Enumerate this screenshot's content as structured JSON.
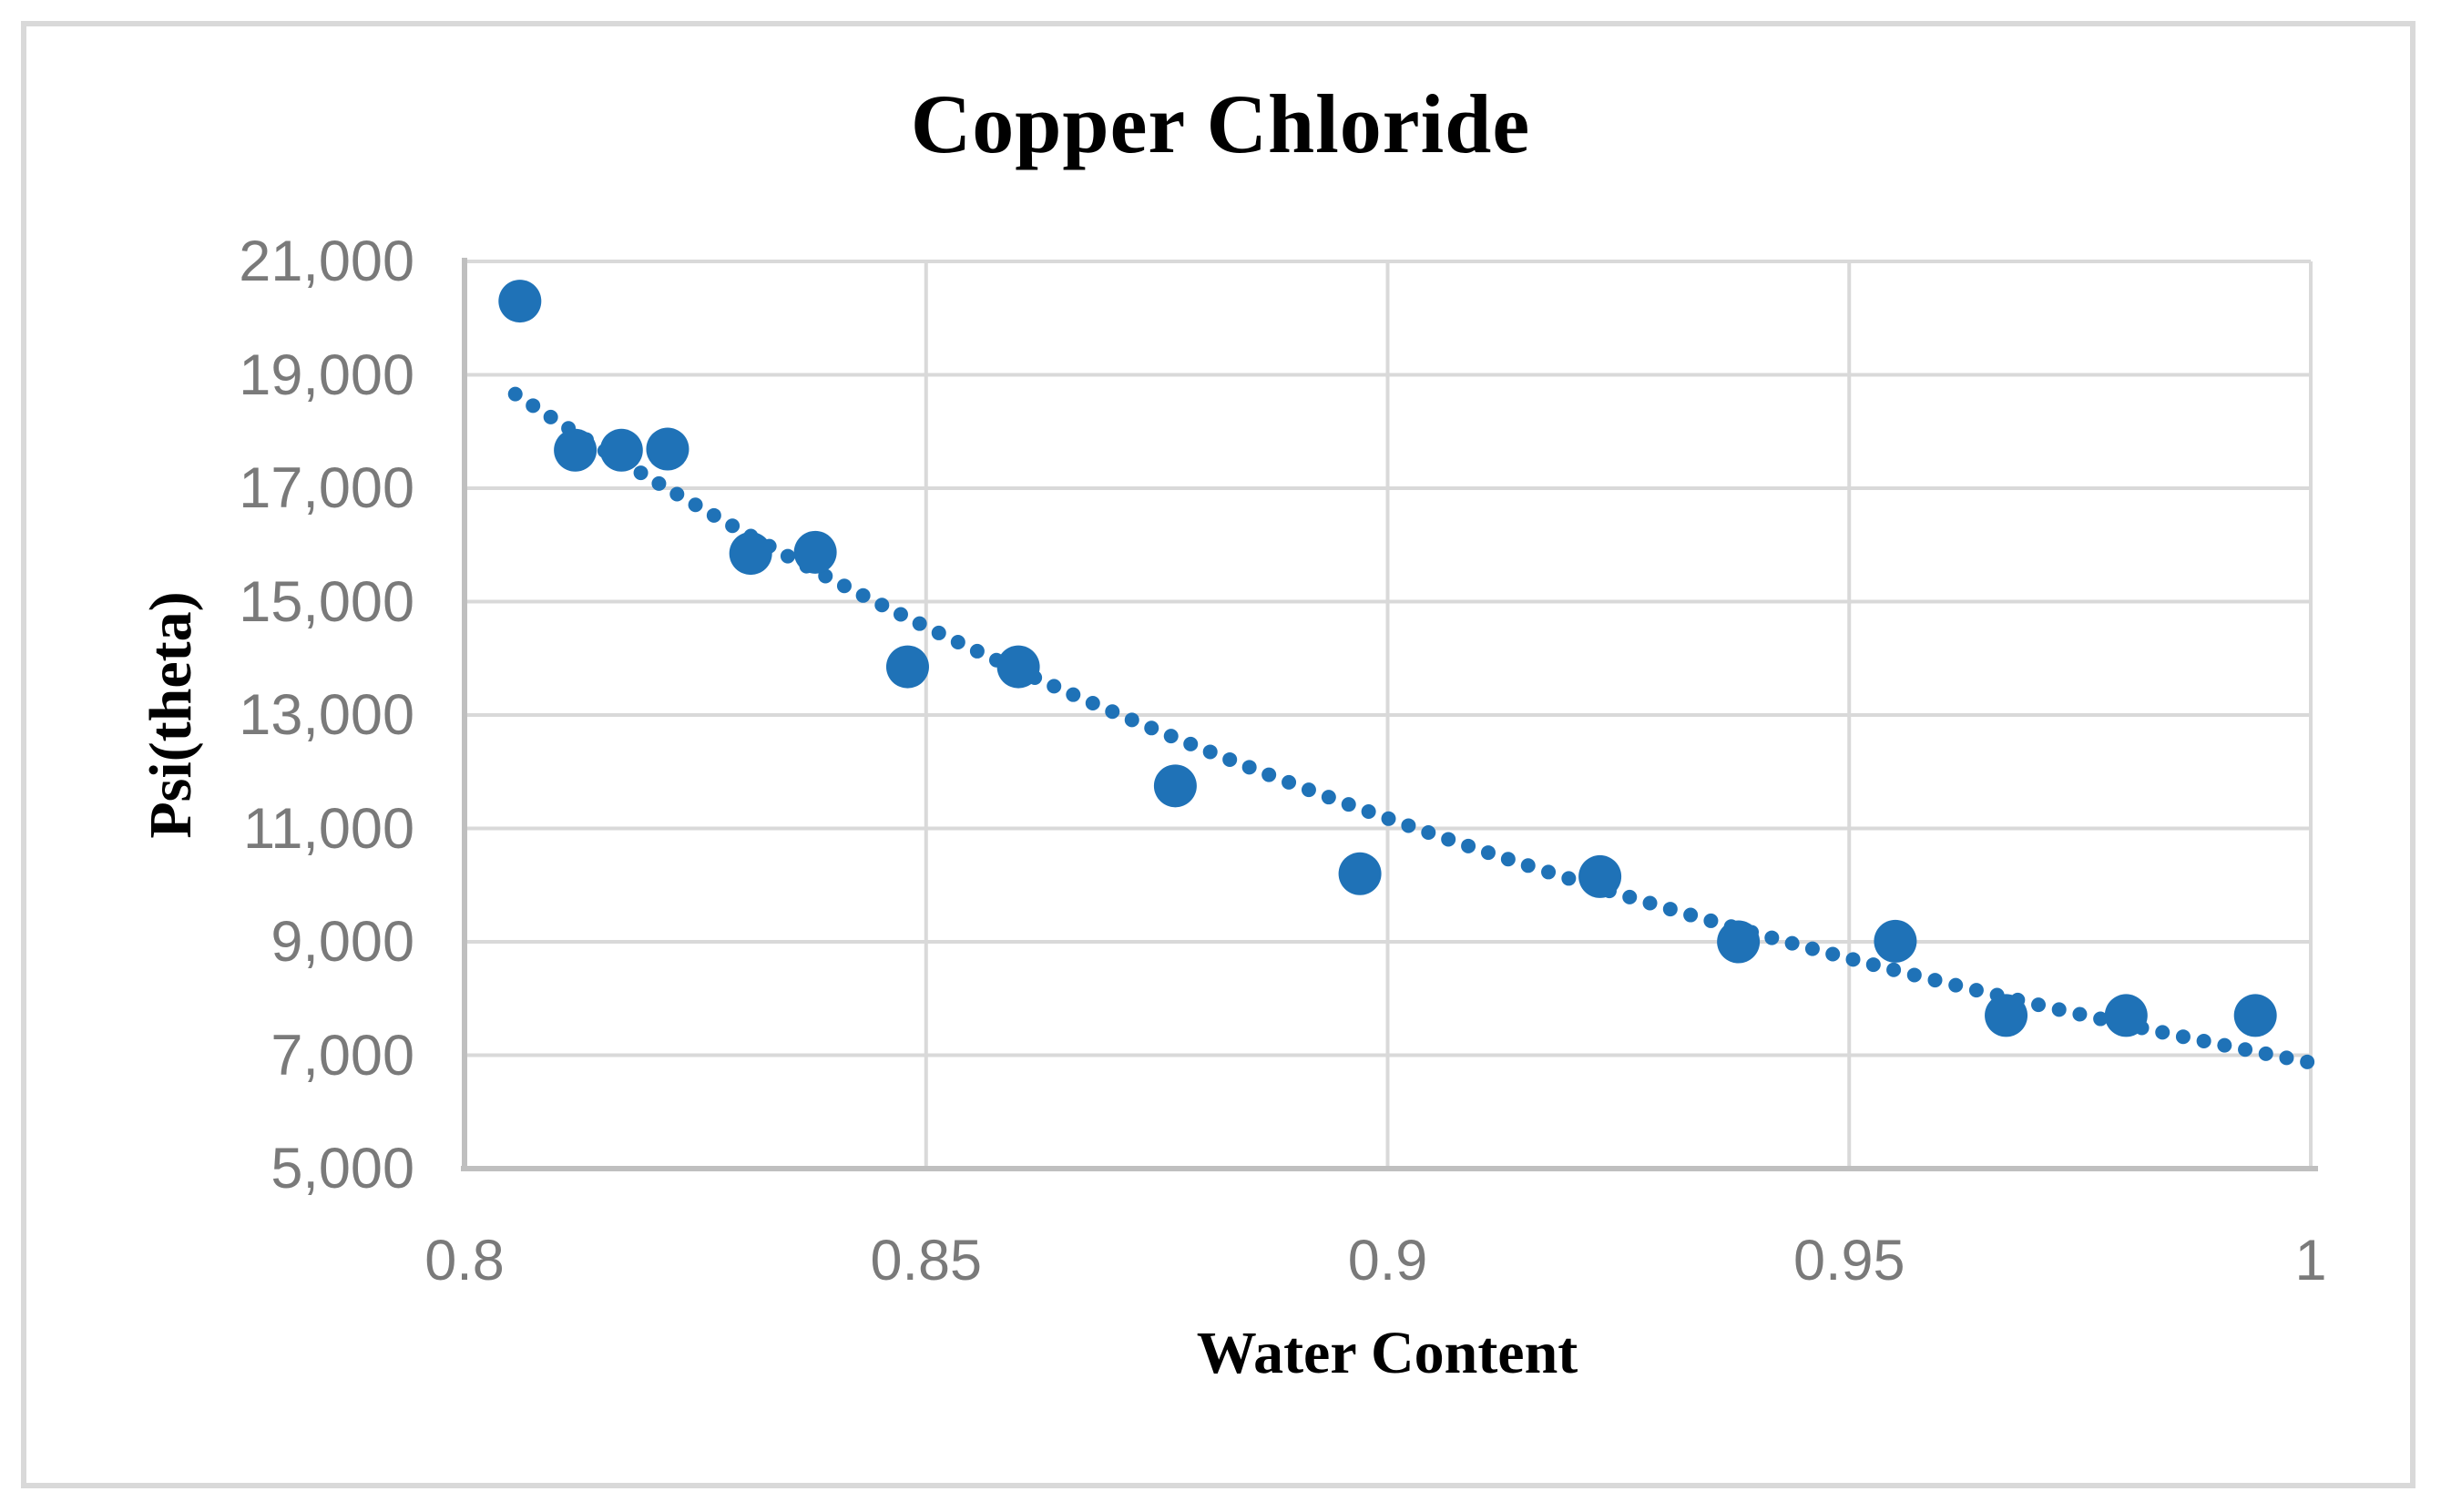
{
  "chart_data": {
    "type": "scatter",
    "title": "Copper Chloride",
    "xlabel": "Water Content",
    "ylabel": "Psi(theta)",
    "x_range": [
      0.8,
      1.0
    ],
    "y_range": [
      5000,
      21000
    ],
    "grid": true,
    "legend": false,
    "x_ticks": [
      {
        "label": "0.8",
        "value": 0.8
      },
      {
        "label": "0.85",
        "value": 0.85
      },
      {
        "label": "0.9",
        "value": 0.9
      },
      {
        "label": "0.95",
        "value": 0.95
      },
      {
        "label": "1",
        "value": 1.0
      }
    ],
    "y_ticks": [
      {
        "label": "21,000",
        "value": 21000
      },
      {
        "label": "19,000",
        "value": 19000
      },
      {
        "label": "17,000",
        "value": 17000
      },
      {
        "label": "15,000",
        "value": 15000
      },
      {
        "label": "13,000",
        "value": 13000
      },
      {
        "label": "11,000",
        "value": 11000
      },
      {
        "label": "9,000",
        "value": 9000
      },
      {
        "label": "7,000",
        "value": 7000
      },
      {
        "label": "5,000",
        "value": 5000
      }
    ],
    "series": [
      {
        "name": "measurements",
        "marker": "circle",
        "marker_radius_px": 23.5,
        "color": "#1F72B7",
        "points": [
          {
            "x": 0.806,
            "y": 20300
          },
          {
            "x": 0.812,
            "y": 17670
          },
          {
            "x": 0.817,
            "y": 17670
          },
          {
            "x": 0.822,
            "y": 17690
          },
          {
            "x": 0.831,
            "y": 15850
          },
          {
            "x": 0.838,
            "y": 15870
          },
          {
            "x": 0.848,
            "y": 13850
          },
          {
            "x": 0.86,
            "y": 13850
          },
          {
            "x": 0.877,
            "y": 11750
          },
          {
            "x": 0.897,
            "y": 10200
          },
          {
            "x": 0.923,
            "y": 10150
          },
          {
            "x": 0.938,
            "y": 9000
          },
          {
            "x": 0.955,
            "y": 9010
          },
          {
            "x": 0.967,
            "y": 7700
          },
          {
            "x": 0.98,
            "y": 7700
          },
          {
            "x": 0.994,
            "y": 7700
          }
        ]
      },
      {
        "name": "power-trendline",
        "style": "dotted",
        "color": "#1F72B7",
        "model": "power",
        "a": 6870,
        "b": -4.62,
        "x_start": 0.8055,
        "x_end": 1.0,
        "dot_radius_px": 8,
        "dot_spacing_px": 23
      }
    ],
    "colors": {
      "marker": "#1F72B7",
      "gridline": "#D9D9D9",
      "axis_line": "#BFBFBF",
      "tick_label": "#7A7A7A",
      "title_text": "#000000",
      "outer_border": "#D9D9D9",
      "background": "#FFFFFF"
    }
  }
}
